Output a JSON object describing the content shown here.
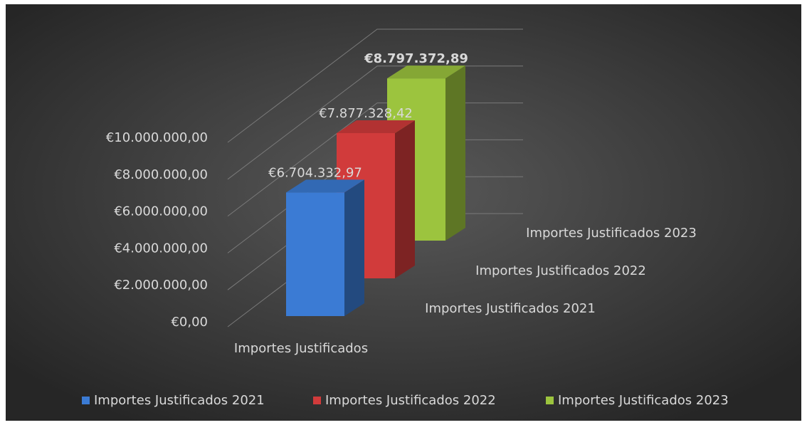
{
  "chart_data": {
    "type": "bar3d",
    "categories": [
      "Importes Justificados"
    ],
    "series": [
      {
        "name": "Importes Justificados 2021",
        "color": "#3b7bd4",
        "values": [
          6704332.97
        ],
        "value_labels": [
          "€6.704.332,97"
        ]
      },
      {
        "name": "Importes Justificados 2022",
        "color": "#d13b3b",
        "values": [
          7877328.42
        ],
        "value_labels": [
          "€7.877.328,42"
        ]
      },
      {
        "name": "Importes Justificados 2023",
        "color": "#9cc43e",
        "values": [
          8797372.89
        ],
        "value_labels": [
          "€8.797.372,89"
        ]
      }
    ],
    "ylim": [
      0,
      10000000
    ],
    "yticks": [
      {
        "value": 0,
        "label": "€0,00"
      },
      {
        "value": 2000000,
        "label": "€2.000.000,00"
      },
      {
        "value": 4000000,
        "label": "€4.000.000,00"
      },
      {
        "value": 6000000,
        "label": "€6.000.000,00"
      },
      {
        "value": 8000000,
        "label": "€8.000.000,00"
      },
      {
        "value": 10000000,
        "label": "€10.000.000,00"
      }
    ],
    "grid": true,
    "legend": "bottom"
  }
}
